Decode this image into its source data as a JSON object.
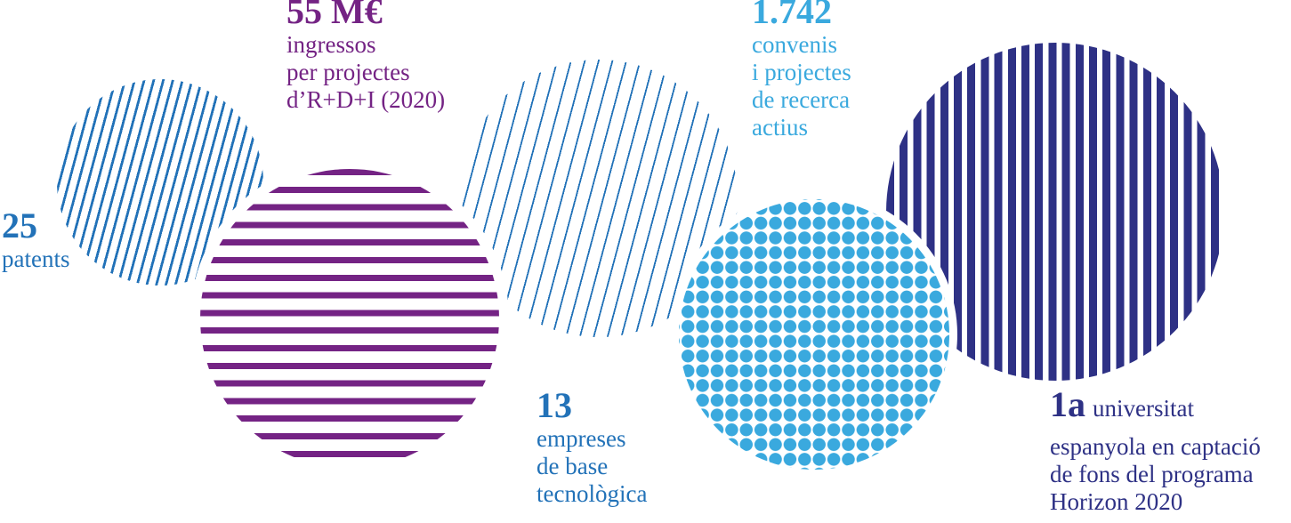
{
  "page": {
    "description": "Research and innovation key figures infographic",
    "background": "#ffffff"
  },
  "colors": {
    "blue": "#2272b8",
    "purple": "#742384",
    "light_blue": "#3aa9de",
    "navy": "#2e3185",
    "white": "#ffffff"
  },
  "stats": {
    "patents": {
      "number": "25",
      "label_lines": [
        "patents"
      ],
      "color": "#2272b8"
    },
    "income": {
      "number": "55 M€",
      "label_lines": [
        "ingressos",
        "per projectes",
        "d’R+D+I (2020)"
      ],
      "color": "#742384"
    },
    "agreements": {
      "number": "1.742",
      "label_lines": [
        "convenis",
        "i projectes",
        "de recerca",
        "actius"
      ],
      "color": "#3aa9de"
    },
    "companies": {
      "number": "13",
      "label_lines": [
        "empreses",
        "de base",
        "tecnològica"
      ],
      "color": "#2272b8"
    },
    "ranking": {
      "number": "1a",
      "label_inline": "universitat",
      "label_lines": [
        "espanyola en captació",
        "de fons del programa",
        "Horizon 2020"
      ],
      "color": "#2e3185"
    }
  },
  "circles": [
    {
      "name": "patents-circle",
      "pattern": "diagonal-stripes",
      "color": "#2272b8"
    },
    {
      "name": "income-circle",
      "pattern": "horizontal-stripes",
      "color": "#742384"
    },
    {
      "name": "agreements-circle",
      "pattern": "diagonal-stripes",
      "color": "#2272b8"
    },
    {
      "name": "dots-circle",
      "pattern": "dots",
      "color": "#3aa9de"
    },
    {
      "name": "ranking-circle",
      "pattern": "vertical-stripes",
      "color": "#2e3185"
    }
  ]
}
